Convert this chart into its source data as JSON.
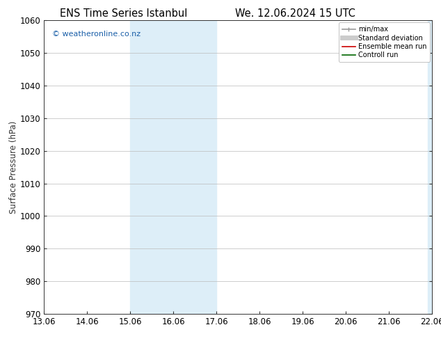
{
  "title_left": "ENS Time Series Istanbul",
  "title_right": "We. 12.06.2024 15 UTC",
  "ylabel": "Surface Pressure (hPa)",
  "ylim": [
    970,
    1060
  ],
  "yticks": [
    970,
    980,
    990,
    1000,
    1010,
    1020,
    1030,
    1040,
    1050,
    1060
  ],
  "x_labels": [
    "13.06",
    "14.06",
    "15.06",
    "16.06",
    "17.06",
    "18.06",
    "19.06",
    "20.06",
    "21.06",
    "22.06"
  ],
  "x_values": [
    0,
    1,
    2,
    3,
    4,
    5,
    6,
    7,
    8,
    9
  ],
  "xlim": [
    0,
    9
  ],
  "shaded_regions": [
    {
      "xmin": 2.0,
      "xmax": 3.0,
      "color": "#ddeef8"
    },
    {
      "xmin": 3.0,
      "xmax": 4.0,
      "color": "#ddeef8"
    },
    {
      "xmin": 9.0,
      "xmax": 9.5,
      "color": "#ddeef8"
    },
    {
      "xmin": 9.5,
      "xmax": 10.0,
      "color": "#ddeef8"
    }
  ],
  "watermark": "© weatheronline.co.nz",
  "watermark_color": "#1a5fa8",
  "legend_items": [
    {
      "label": "min/max",
      "color": "#999999",
      "lw": 1.2
    },
    {
      "label": "Standard deviation",
      "color": "#cccccc",
      "lw": 5
    },
    {
      "label": "Ensemble mean run",
      "color": "#cc0000",
      "lw": 1.2
    },
    {
      "label": "Controll run",
      "color": "#006600",
      "lw": 1.2
    }
  ],
  "bg_color": "#ffffff",
  "plot_bg_color": "#ffffff",
  "grid_color": "#bbbbbb",
  "tick_color": "#333333",
  "font_size": 8.5,
  "title_font_size": 10.5,
  "watermark_font_size": 8
}
